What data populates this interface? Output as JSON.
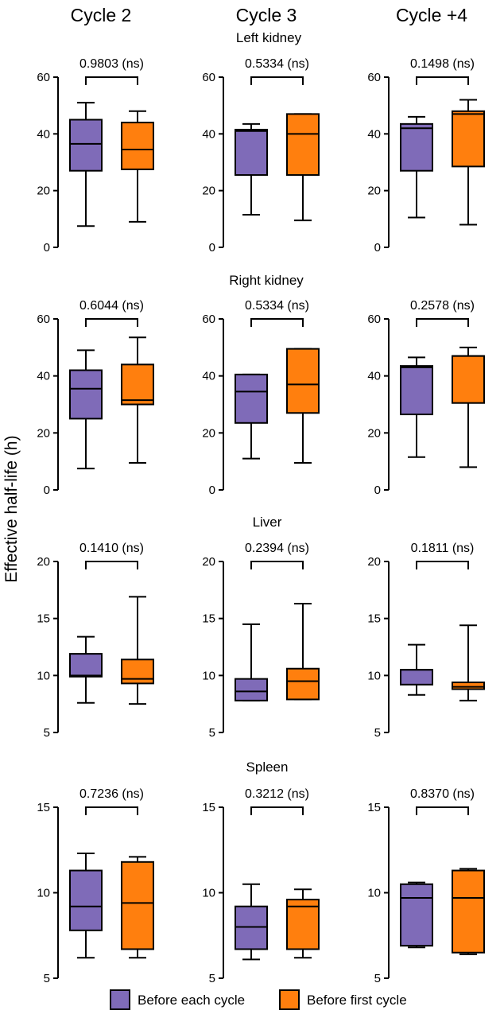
{
  "colors": {
    "before_each": "#7f6bb8",
    "before_first": "#ff7f0e"
  },
  "columns": [
    "Cycle 2",
    "Cycle 3",
    "Cycle +4"
  ],
  "y_axis_label": "Effective half-life (h)",
  "legend": [
    {
      "label": "Before each cycle",
      "color": "#7f6bb8"
    },
    {
      "label": "Before first cycle",
      "color": "#ff7f0e"
    }
  ],
  "chart_data": [
    {
      "type": "box",
      "title": "Left kidney",
      "column": "Cycle 2",
      "ylim": [
        0,
        60
      ],
      "yticks": [
        0,
        20,
        40,
        60
      ],
      "pvalue": "0.9803 (ns)",
      "series": [
        {
          "name": "Before each cycle",
          "min": 7.5,
          "q1": 27,
          "median": 36.5,
          "q3": 45,
          "max": 51
        },
        {
          "name": "Before first cycle",
          "min": 9,
          "q1": 27.5,
          "median": 34.5,
          "q3": 44,
          "max": 48
        }
      ]
    },
    {
      "type": "box",
      "title": "Left kidney",
      "column": "Cycle 3",
      "ylim": [
        0,
        60
      ],
      "yticks": [
        0,
        20,
        40,
        60
      ],
      "pvalue": "0.5334 (ns)",
      "series": [
        {
          "name": "Before each cycle",
          "min": 11.5,
          "q1": 25.5,
          "median": 41,
          "q3": 41.5,
          "max": 43.5
        },
        {
          "name": "Before first cycle",
          "min": 9.5,
          "q1": 25.5,
          "median": 40,
          "q3": 47,
          "max": 47
        }
      ]
    },
    {
      "type": "box",
      "title": "Left kidney",
      "column": "Cycle +4",
      "ylim": [
        0,
        60
      ],
      "yticks": [
        0,
        20,
        40,
        60
      ],
      "pvalue": "0.1498 (ns)",
      "series": [
        {
          "name": "Before each cycle",
          "min": 10.5,
          "q1": 27,
          "median": 42,
          "q3": 43.5,
          "max": 46
        },
        {
          "name": "Before first cycle",
          "min": 8,
          "q1": 28.5,
          "median": 47,
          "q3": 48,
          "max": 52
        }
      ]
    },
    {
      "type": "box",
      "title": "Right kidney",
      "column": "Cycle 2",
      "ylim": [
        0,
        60
      ],
      "yticks": [
        0,
        20,
        40,
        60
      ],
      "pvalue": "0.6044 (ns)",
      "series": [
        {
          "name": "Before each cycle",
          "min": 7.5,
          "q1": 25,
          "median": 35.5,
          "q3": 42,
          "max": 49
        },
        {
          "name": "Before first cycle",
          "min": 9.5,
          "q1": 30,
          "median": 31.5,
          "q3": 44,
          "max": 53.5
        }
      ]
    },
    {
      "type": "box",
      "title": "Right kidney",
      "column": "Cycle 3",
      "ylim": [
        0,
        60
      ],
      "yticks": [
        0,
        20,
        40,
        60
      ],
      "pvalue": "0.5334 (ns)",
      "series": [
        {
          "name": "Before each cycle",
          "min": 11,
          "q1": 23.5,
          "median": 34.5,
          "q3": 40.5,
          "max": 40.5
        },
        {
          "name": "Before first cycle",
          "min": 9.5,
          "q1": 27,
          "median": 37,
          "q3": 49.5,
          "max": 49.5
        }
      ]
    },
    {
      "type": "box",
      "title": "Right kidney",
      "column": "Cycle +4",
      "ylim": [
        0,
        60
      ],
      "yticks": [
        0,
        20,
        40,
        60
      ],
      "pvalue": "0.2578 (ns)",
      "series": [
        {
          "name": "Before each cycle",
          "min": 11.5,
          "q1": 26.5,
          "median": 43,
          "q3": 43.5,
          "max": 46.5
        },
        {
          "name": "Before first cycle",
          "min": 8,
          "q1": 30.5,
          "median": 47,
          "q3": 47,
          "max": 50
        }
      ]
    },
    {
      "type": "box",
      "title": "Liver",
      "column": "Cycle 2",
      "ylim": [
        5,
        20
      ],
      "yticks": [
        5,
        10,
        15,
        20
      ],
      "pvalue": "0.1410 (ns)",
      "series": [
        {
          "name": "Before each cycle",
          "min": 7.6,
          "q1": 9.9,
          "median": 10.0,
          "q3": 11.9,
          "max": 13.4
        },
        {
          "name": "Before first cycle",
          "min": 7.5,
          "q1": 9.3,
          "median": 9.7,
          "q3": 11.4,
          "max": 16.9
        }
      ]
    },
    {
      "type": "box",
      "title": "Liver",
      "column": "Cycle 3",
      "ylim": [
        5,
        20
      ],
      "yticks": [
        5,
        10,
        15,
        20
      ],
      "pvalue": "0.2394 (ns)",
      "series": [
        {
          "name": "Before each cycle",
          "min": 7.8,
          "q1": 7.8,
          "median": 8.6,
          "q3": 9.7,
          "max": 14.5
        },
        {
          "name": "Before first cycle",
          "min": 7.9,
          "q1": 7.9,
          "median": 9.5,
          "q3": 10.6,
          "max": 16.3
        }
      ]
    },
    {
      "type": "box",
      "title": "Liver",
      "column": "Cycle +4",
      "ylim": [
        5,
        20
      ],
      "yticks": [
        5,
        10,
        15,
        20
      ],
      "pvalue": "0.1811 (ns)",
      "series": [
        {
          "name": "Before each cycle",
          "min": 8.3,
          "q1": 9.2,
          "median": 10.5,
          "q3": 10.5,
          "max": 12.7
        },
        {
          "name": "Before first cycle",
          "min": 7.8,
          "q1": 8.8,
          "median": 9.0,
          "q3": 9.4,
          "max": 14.4
        }
      ]
    },
    {
      "type": "box",
      "title": "Spleen",
      "column": "Cycle 2",
      "ylim": [
        5,
        15
      ],
      "yticks": [
        5,
        10,
        15
      ],
      "pvalue": "0.7236 (ns)",
      "series": [
        {
          "name": "Before each cycle",
          "min": 6.2,
          "q1": 7.8,
          "median": 9.2,
          "q3": 11.3,
          "max": 12.3
        },
        {
          "name": "Before first cycle",
          "min": 6.2,
          "q1": 6.7,
          "median": 9.4,
          "q3": 11.8,
          "max": 12.1
        }
      ]
    },
    {
      "type": "box",
      "title": "Spleen",
      "column": "Cycle 3",
      "ylim": [
        5,
        15
      ],
      "yticks": [
        5,
        10,
        15
      ],
      "pvalue": "0.3212 (ns)",
      "series": [
        {
          "name": "Before each cycle",
          "min": 6.1,
          "q1": 6.7,
          "median": 8.0,
          "q3": 9.2,
          "max": 10.5
        },
        {
          "name": "Before first cycle",
          "min": 6.2,
          "q1": 6.7,
          "median": 9.2,
          "q3": 9.6,
          "max": 10.2
        }
      ]
    },
    {
      "type": "box",
      "title": "Spleen",
      "column": "Cycle +4",
      "ylim": [
        5,
        15
      ],
      "yticks": [
        5,
        10,
        15
      ],
      "pvalue": "0.8370 (ns)",
      "series": [
        {
          "name": "Before each cycle",
          "min": 6.8,
          "q1": 6.9,
          "median": 9.7,
          "q3": 10.5,
          "max": 10.6
        },
        {
          "name": "Before first cycle",
          "min": 6.4,
          "q1": 6.5,
          "median": 9.7,
          "q3": 11.3,
          "max": 11.4
        }
      ]
    }
  ]
}
